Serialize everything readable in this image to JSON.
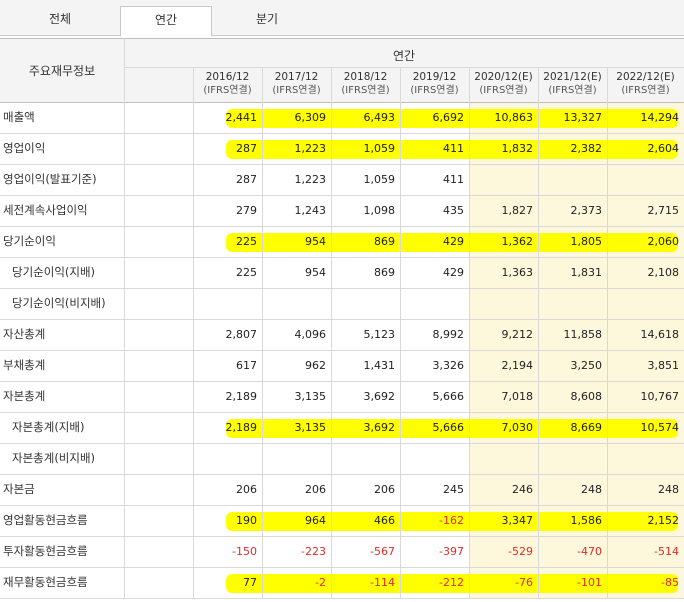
{
  "tabs": [
    {
      "label": "전체",
      "active": false
    },
    {
      "label": "연간",
      "active": true
    },
    {
      "label": "분기",
      "active": false
    }
  ],
  "header": {
    "row_label": "주요재무정보",
    "group_label": "연간"
  },
  "columns": [
    {
      "period": "2016/12",
      "basis": "(IFRS연결)",
      "estimate": false
    },
    {
      "period": "2017/12",
      "basis": "(IFRS연결)",
      "estimate": false
    },
    {
      "period": "2018/12",
      "basis": "(IFRS연결)",
      "estimate": false
    },
    {
      "period": "2019/12",
      "basis": "(IFRS연결)",
      "estimate": false
    },
    {
      "period": "2020/12(E)",
      "basis": "(IFRS연결)",
      "estimate": true
    },
    {
      "period": "2021/12(E)",
      "basis": "(IFRS연결)",
      "estimate": true
    },
    {
      "period": "2022/12(E)",
      "basis": "(IFRS연결)",
      "estimate": true
    }
  ],
  "rows": [
    {
      "label": "매출액",
      "indent": false,
      "highlight": true,
      "values": [
        "2,441",
        "6,309",
        "6,493",
        "6,692",
        "10,863",
        "13,327",
        "14,294"
      ]
    },
    {
      "label": "영업이익",
      "indent": false,
      "highlight": true,
      "values": [
        "287",
        "1,223",
        "1,059",
        "411",
        "1,832",
        "2,382",
        "2,604"
      ]
    },
    {
      "label": "영업이익(발표기준)",
      "indent": false,
      "highlight": false,
      "values": [
        "287",
        "1,223",
        "1,059",
        "411",
        "",
        "",
        ""
      ]
    },
    {
      "label": "세전계속사업이익",
      "indent": false,
      "highlight": false,
      "values": [
        "279",
        "1,243",
        "1,098",
        "435",
        "1,827",
        "2,373",
        "2,715"
      ]
    },
    {
      "label": "당기순이익",
      "indent": false,
      "highlight": true,
      "values": [
        "225",
        "954",
        "869",
        "429",
        "1,362",
        "1,805",
        "2,060"
      ]
    },
    {
      "label": "당기순이익(지배)",
      "indent": true,
      "highlight": false,
      "values": [
        "225",
        "954",
        "869",
        "429",
        "1,363",
        "1,831",
        "2,108"
      ]
    },
    {
      "label": "당기순이익(비지배)",
      "indent": true,
      "highlight": false,
      "values": [
        "",
        "",
        "",
        "",
        "",
        "",
        ""
      ]
    },
    {
      "label": "자산총계",
      "indent": false,
      "highlight": false,
      "values": [
        "2,807",
        "4,096",
        "5,123",
        "8,992",
        "9,212",
        "11,858",
        "14,618"
      ]
    },
    {
      "label": "부채총계",
      "indent": false,
      "highlight": false,
      "values": [
        "617",
        "962",
        "1,431",
        "3,326",
        "2,194",
        "3,250",
        "3,851"
      ]
    },
    {
      "label": "자본총계",
      "indent": false,
      "highlight": false,
      "values": [
        "2,189",
        "3,135",
        "3,692",
        "5,666",
        "7,018",
        "8,608",
        "10,767"
      ]
    },
    {
      "label": "자본총계(지배)",
      "indent": true,
      "highlight": true,
      "values": [
        "2,189",
        "3,135",
        "3,692",
        "5,666",
        "7,030",
        "8,669",
        "10,574"
      ]
    },
    {
      "label": "자본총계(비지배)",
      "indent": true,
      "highlight": false,
      "values": [
        "",
        "",
        "",
        "",
        "",
        "",
        ""
      ]
    },
    {
      "label": "자본금",
      "indent": false,
      "highlight": false,
      "values": [
        "206",
        "206",
        "206",
        "245",
        "246",
        "248",
        "248"
      ]
    },
    {
      "label": "영업활동현금흐름",
      "indent": false,
      "highlight": true,
      "values": [
        "190",
        "964",
        "466",
        "-162",
        "3,347",
        "1,586",
        "2,152"
      ]
    },
    {
      "label": "투자활동현금흐름",
      "indent": false,
      "highlight": false,
      "values": [
        "-150",
        "-223",
        "-567",
        "-397",
        "-529",
        "-470",
        "-514"
      ]
    },
    {
      "label": "재무활동현금흐름",
      "indent": false,
      "highlight": true,
      "values": [
        "77",
        "-2",
        "-114",
        "-212",
        "-76",
        "-101",
        "-85"
      ]
    }
  ],
  "colors": {
    "highlight": "#ffff00",
    "estimate_bg": "#fdf7dc",
    "negative": "#e12a2a"
  }
}
